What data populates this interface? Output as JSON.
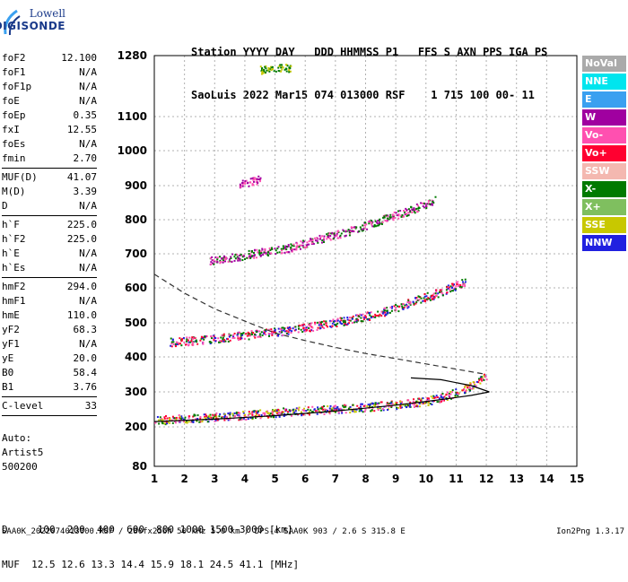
{
  "logo": {
    "line1": "Lowell",
    "line2": "DIGISONDE"
  },
  "header": {
    "line1": "Station YYYY DAY   DDD HHMMSS P1   FFS S AXN PPS IGA PS",
    "line2": "SaoLuis 2022 Mar15 074 013000 RSF    1 715 100 00- 11"
  },
  "params": [
    {
      "name": "foF2",
      "value": "12.100"
    },
    {
      "name": "foF1",
      "value": "N/A"
    },
    {
      "name": "foF1p",
      "value": "N/A"
    },
    {
      "name": "foE",
      "value": "N/A"
    },
    {
      "name": "foEp",
      "value": "0.35"
    },
    {
      "name": "fxI",
      "value": "12.55"
    },
    {
      "name": "foEs",
      "value": "N/A"
    },
    {
      "name": "fmin",
      "value": "2.70"
    },
    {
      "sep": true
    },
    {
      "name": "MUF(D)",
      "value": "41.07"
    },
    {
      "name": "M(D)",
      "value": "3.39"
    },
    {
      "name": "D",
      "value": "N/A"
    },
    {
      "sep": true
    },
    {
      "name": "h`F",
      "value": "225.0"
    },
    {
      "name": "h`F2",
      "value": "225.0"
    },
    {
      "name": "h`E",
      "value": "N/A"
    },
    {
      "name": "h`Es",
      "value": "N/A"
    },
    {
      "sep": true
    },
    {
      "name": "hmF2",
      "value": "294.0"
    },
    {
      "name": "hmF1",
      "value": "N/A"
    },
    {
      "name": "hmE",
      "value": "110.0"
    },
    {
      "name": "yF2",
      "value": "68.3"
    },
    {
      "name": "yF1",
      "value": "N/A"
    },
    {
      "name": "yE",
      "value": "20.0"
    },
    {
      "name": "B0",
      "value": "58.4"
    },
    {
      "name": "B1",
      "value": "3.76"
    },
    {
      "sep": true
    },
    {
      "name": "C-level",
      "value": "33"
    },
    {
      "sep": true
    }
  ],
  "auto": {
    "line1": "Auto:",
    "line2": "Artist5",
    "line3": "500200"
  },
  "bottom": {
    "dline": "D     100  200  400  600  800 1000 1500 3000 [km]",
    "mufline": "MUF  12.5 12.6 13.3 14.4 15.9 18.1 24.5 41.1 [MHz]"
  },
  "footer": "SAA0K_2022074013000.RSF / 280fx256h 50 kHz 5.0 km / DPS-4 SAA0K 903 / 2.6 S 315.8 E",
  "version": "Ion2Png 1.3.17",
  "legend": [
    {
      "label": "NoVal",
      "color": "#aaaaaa",
      "text": "#ffffff"
    },
    {
      "label": "NNE",
      "color": "#00e5ee",
      "text": "#ffffff"
    },
    {
      "label": "E",
      "color": "#3aa0f0",
      "text": "#ffffff"
    },
    {
      "label": "W",
      "color": "#a000a0",
      "text": "#ffffff"
    },
    {
      "label": "Vo-",
      "color": "#ff50b0",
      "text": "#ffffff"
    },
    {
      "label": "Vo+",
      "color": "#ff0030",
      "text": "#ffffff"
    },
    {
      "label": "SSW",
      "color": "#f4b8b0",
      "text": "#ffffff"
    },
    {
      "label": "X-",
      "color": "#007a00",
      "text": "#ffffff"
    },
    {
      "label": "X+",
      "color": "#7fbf5f",
      "text": "#ffffff"
    },
    {
      "label": "SSE",
      "color": "#c8c800",
      "text": "#ffffff"
    },
    {
      "label": "NNW",
      "color": "#2020e0",
      "text": "#ffffff"
    }
  ],
  "chart_data": {
    "type": "scatter",
    "x_ticks": [
      1,
      2,
      3,
      4,
      5,
      6,
      7,
      8,
      9,
      10,
      11,
      12,
      13,
      14,
      15
    ],
    "xlim": [
      1,
      15
    ],
    "ylim": [
      80,
      1280
    ],
    "y_ticks": [
      80,
      200,
      300,
      400,
      500,
      600,
      700,
      800,
      900,
      1000,
      1100,
      1280
    ],
    "grid": true,
    "traces": [
      {
        "name": "F2 first hop",
        "color_mix": [
          "#2020e0",
          "#ff0030",
          "#ff50b0",
          "#007a00",
          "#c8c800"
        ],
        "points": [
          [
            1,
            220
          ],
          [
            2,
            225
          ],
          [
            3,
            230
          ],
          [
            4,
            235
          ],
          [
            5,
            242
          ],
          [
            6,
            248
          ],
          [
            7,
            252
          ],
          [
            8,
            258
          ],
          [
            9,
            265
          ],
          [
            10,
            275
          ],
          [
            10.5,
            285
          ],
          [
            11,
            300
          ],
          [
            11.5,
            320
          ],
          [
            12.0,
            345
          ]
        ]
      },
      {
        "name": "F2 second hop",
        "color_mix": [
          "#ff0030",
          "#2020e0",
          "#ff50b0",
          "#007a00"
        ],
        "points": [
          [
            1.5,
            445
          ],
          [
            2.5,
            450
          ],
          [
            3.5,
            460
          ],
          [
            4.5,
            470
          ],
          [
            5.5,
            480
          ],
          [
            6.5,
            495
          ],
          [
            7.5,
            510
          ],
          [
            8.5,
            530
          ],
          [
            9.5,
            560
          ],
          [
            10.5,
            590
          ],
          [
            11.3,
            620
          ]
        ]
      },
      {
        "name": "F2 third hop",
        "color_mix": [
          "#a000a0",
          "#ff50b0",
          "#007a00"
        ],
        "points": [
          [
            2.8,
            680
          ],
          [
            3.5,
            690
          ],
          [
            4.5,
            705
          ],
          [
            5.5,
            720
          ],
          [
            6.5,
            745
          ],
          [
            7.5,
            770
          ],
          [
            8.5,
            800
          ],
          [
            9.5,
            830
          ],
          [
            10.3,
            860
          ]
        ]
      },
      {
        "name": "F2 fourth hop",
        "color_mix": [
          "#a000a0",
          "#ff50b0"
        ],
        "points": [
          [
            3.8,
            905
          ],
          [
            4.5,
            920
          ]
        ]
      },
      {
        "name": "Upper echoes",
        "color_mix": [
          "#007a00",
          "#c8c800"
        ],
        "points": [
          [
            4.5,
            1240
          ],
          [
            5.5,
            1245
          ]
        ]
      }
    ],
    "profile_curve": {
      "points": [
        [
          1,
          215
        ],
        [
          3,
          222
        ],
        [
          5,
          232
        ],
        [
          7,
          245
        ],
        [
          9,
          262
        ],
        [
          10.5,
          278
        ],
        [
          11.5,
          290
        ],
        [
          12.1,
          300
        ]
      ]
    },
    "profile_upper": {
      "points": [
        [
          12.1,
          300
        ],
        [
          11.5,
          318
        ],
        [
          10.5,
          335
        ],
        [
          9.5,
          340
        ]
      ]
    },
    "dashed_curve": {
      "points": [
        [
          1,
          640
        ],
        [
          2,
          585
        ],
        [
          3,
          540
        ],
        [
          4,
          505
        ],
        [
          5,
          470
        ],
        [
          6,
          448
        ],
        [
          7,
          428
        ],
        [
          8,
          410
        ],
        [
          9,
          395
        ],
        [
          10,
          380
        ],
        [
          11,
          365
        ],
        [
          12,
          350
        ]
      ]
    }
  }
}
